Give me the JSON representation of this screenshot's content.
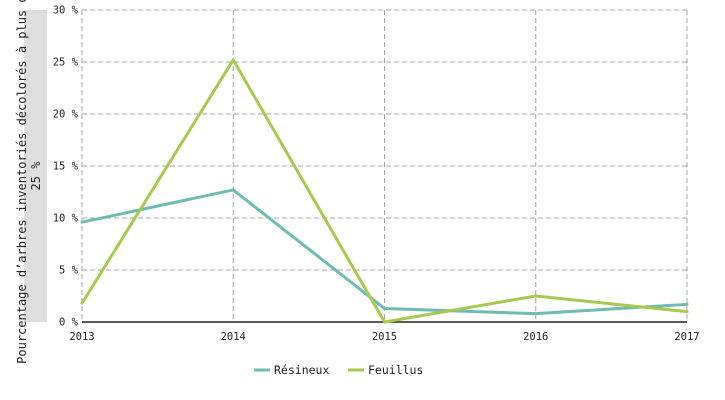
{
  "chart_data": {
    "type": "line",
    "title": "",
    "xlabel": "",
    "ylabel_line1": "Pourcentage d’arbres inventoriés décolorés à plus de",
    "ylabel_line2": "25 %",
    "x": [
      "2013",
      "2014",
      "2015",
      "2016",
      "2017"
    ],
    "ylim": [
      0,
      30
    ],
    "yticks": [
      0,
      5,
      10,
      15,
      20,
      25,
      30
    ],
    "ytick_labels": [
      "0 %",
      "5 %",
      "10 %",
      "15 %",
      "20 %",
      "25 %",
      "30 %"
    ],
    "grid": true,
    "legend_position": "bottom-center",
    "series": [
      {
        "name": "Résineux",
        "color": "#6cbcb1",
        "values": [
          9.6,
          12.7,
          1.3,
          0.8,
          1.7
        ]
      },
      {
        "name": "Feuillus",
        "color": "#a8c94e",
        "values": [
          1.8,
          25.2,
          0.0,
          2.5,
          1.0
        ]
      }
    ]
  }
}
